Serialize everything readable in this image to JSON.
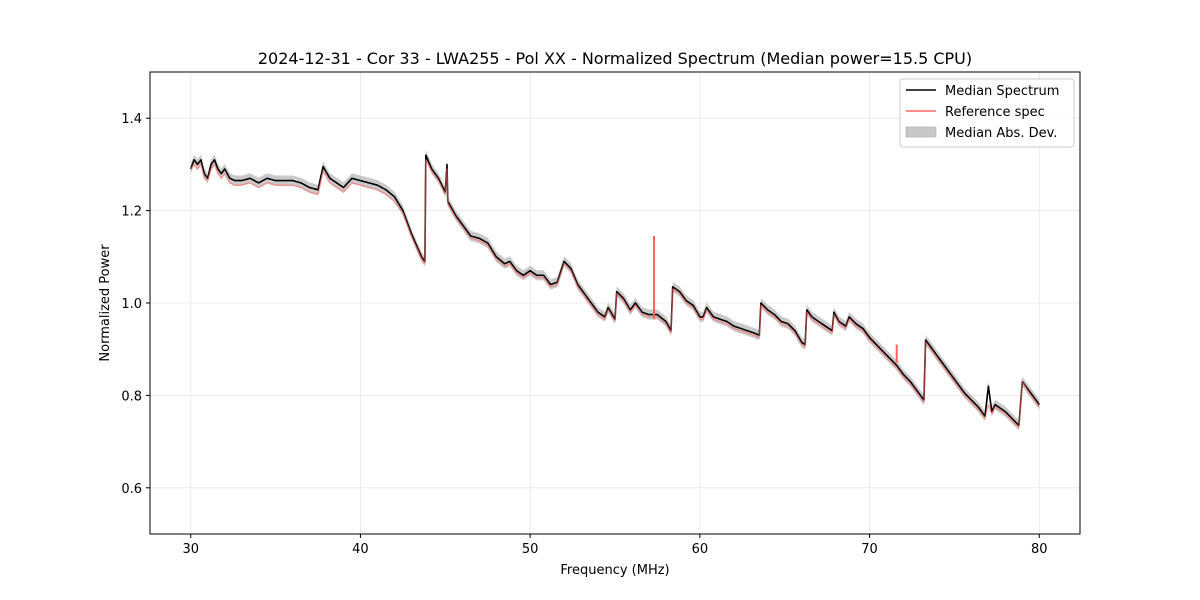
{
  "chart_data": {
    "type": "line",
    "title": "2024-12-31 - Cor 33 - LWA255 - Pol XX - Normalized Spectrum (Median power=15.5 CPU)",
    "xlabel": "Frequency (MHz)",
    "ylabel": "Normalized Power",
    "xlim": [
      27.6,
      82.4
    ],
    "ylim": [
      0.5,
      1.5
    ],
    "xticks": [
      30,
      40,
      50,
      60,
      70,
      80
    ],
    "yticks": [
      0.6,
      0.8,
      1.0,
      1.2,
      1.4
    ],
    "xtick_labels": [
      "30",
      "40",
      "50",
      "60",
      "70",
      "80"
    ],
    "ytick_labels": [
      "0.6",
      "0.8",
      "1.0",
      "1.2",
      "1.4"
    ],
    "grid": true,
    "legend_position": "top-right",
    "legend": [
      {
        "label": "Median Spectrum",
        "kind": "line",
        "color": "#000000"
      },
      {
        "label": "Reference spec",
        "kind": "line",
        "color": "#ff6060"
      },
      {
        "label": "Median Abs. Dev.",
        "kind": "band",
        "color": "#c8c8c8"
      }
    ],
    "mad_half_width": 0.011,
    "x": [
      30.0,
      30.2,
      30.4,
      30.6,
      30.8,
      31.0,
      31.2,
      31.4,
      31.6,
      31.8,
      32.0,
      32.3,
      32.6,
      33.0,
      33.5,
      34.0,
      34.5,
      35.0,
      35.5,
      36.0,
      36.5,
      37.0,
      37.5,
      37.8,
      38.2,
      38.6,
      39.0,
      39.5,
      40.0,
      40.5,
      41.0,
      41.5,
      42.0,
      42.5,
      43.0,
      43.6,
      43.8,
      43.85,
      44.2,
      44.6,
      45.0,
      45.1,
      45.15,
      45.6,
      46.0,
      46.5,
      47.0,
      47.5,
      48.0,
      48.5,
      48.8,
      49.2,
      49.6,
      50.0,
      50.4,
      50.8,
      51.2,
      51.6,
      52.0,
      52.4,
      52.8,
      53.2,
      53.6,
      54.0,
      54.4,
      54.6,
      55.0,
      55.1,
      55.5,
      55.9,
      56.2,
      56.6,
      57.0,
      57.5,
      58.0,
      58.3,
      58.4,
      58.8,
      59.2,
      59.6,
      60.0,
      60.2,
      60.4,
      60.8,
      61.2,
      61.6,
      62.0,
      62.4,
      62.8,
      63.2,
      63.5,
      63.6,
      64.0,
      64.4,
      64.8,
      65.2,
      65.6,
      66.0,
      66.2,
      66.3,
      66.6,
      67.0,
      67.4,
      67.8,
      67.9,
      68.2,
      68.6,
      68.8,
      69.2,
      69.6,
      70.0,
      70.4,
      70.8,
      71.2,
      71.6,
      72.0,
      72.4,
      72.8,
      73.2,
      73.3,
      73.6,
      74.0,
      74.4,
      74.8,
      75.2,
      75.6,
      76.0,
      76.4,
      76.8,
      77.0,
      77.2,
      77.4,
      77.6,
      78.0,
      78.4,
      78.8,
      79.0,
      79.4,
      79.8,
      80.0
    ],
    "series": [
      {
        "name": "Median Spectrum",
        "color": "#000000",
        "values": [
          1.29,
          1.31,
          1.3,
          1.31,
          1.28,
          1.27,
          1.3,
          1.31,
          1.29,
          1.28,
          1.29,
          1.27,
          1.265,
          1.265,
          1.27,
          1.26,
          1.27,
          1.265,
          1.265,
          1.265,
          1.26,
          1.25,
          1.245,
          1.295,
          1.27,
          1.26,
          1.25,
          1.27,
          1.265,
          1.26,
          1.255,
          1.245,
          1.23,
          1.2,
          1.15,
          1.1,
          1.09,
          1.32,
          1.29,
          1.27,
          1.24,
          1.3,
          1.22,
          1.19,
          1.17,
          1.145,
          1.14,
          1.13,
          1.1,
          1.085,
          1.09,
          1.07,
          1.06,
          1.07,
          1.06,
          1.06,
          1.04,
          1.045,
          1.09,
          1.075,
          1.04,
          1.02,
          1.0,
          0.98,
          0.97,
          0.99,
          0.965,
          1.025,
          1.01,
          0.985,
          1.0,
          0.98,
          0.975,
          0.975,
          0.96,
          0.94,
          1.035,
          1.025,
          1.005,
          0.995,
          0.97,
          0.97,
          0.99,
          0.97,
          0.965,
          0.96,
          0.95,
          0.945,
          0.94,
          0.935,
          0.93,
          1.0,
          0.985,
          0.975,
          0.96,
          0.955,
          0.94,
          0.915,
          0.91,
          0.985,
          0.97,
          0.96,
          0.95,
          0.94,
          0.98,
          0.96,
          0.95,
          0.97,
          0.955,
          0.945,
          0.925,
          0.91,
          0.895,
          0.88,
          0.865,
          0.845,
          0.83,
          0.81,
          0.79,
          0.92,
          0.905,
          0.885,
          0.865,
          0.845,
          0.825,
          0.805,
          0.79,
          0.775,
          0.755,
          0.82,
          0.765,
          0.78,
          0.775,
          0.765,
          0.75,
          0.735,
          0.83,
          0.81,
          0.79,
          0.78
        ]
      },
      {
        "name": "Reference spec",
        "color": "#ff6060",
        "values": [
          1.29,
          1.3,
          1.29,
          1.3,
          1.27,
          1.265,
          1.29,
          1.3,
          1.28,
          1.27,
          1.28,
          1.26,
          1.255,
          1.255,
          1.26,
          1.25,
          1.26,
          1.255,
          1.255,
          1.255,
          1.25,
          1.24,
          1.235,
          1.285,
          1.26,
          1.25,
          1.24,
          1.26,
          1.255,
          1.25,
          1.245,
          1.235,
          1.22,
          1.195,
          1.145,
          1.095,
          1.085,
          1.31,
          1.285,
          1.265,
          1.235,
          1.29,
          1.215,
          1.185,
          1.165,
          1.14,
          1.135,
          1.125,
          1.095,
          1.08,
          1.085,
          1.065,
          1.055,
          1.065,
          1.055,
          1.055,
          1.035,
          1.04,
          1.085,
          1.07,
          1.035,
          1.015,
          0.995,
          0.975,
          0.965,
          0.985,
          0.96,
          1.02,
          1.005,
          0.98,
          0.995,
          0.975,
          0.97,
          0.97,
          0.955,
          0.935,
          1.03,
          1.02,
          1.0,
          0.99,
          0.965,
          0.965,
          0.985,
          0.965,
          0.96,
          0.955,
          0.945,
          0.94,
          0.935,
          0.93,
          0.925,
          0.995,
          0.98,
          0.97,
          0.955,
          0.95,
          0.935,
          0.91,
          0.905,
          0.98,
          0.965,
          0.955,
          0.945,
          0.935,
          0.975,
          0.955,
          0.945,
          0.965,
          0.95,
          0.94,
          0.92,
          0.905,
          0.89,
          0.875,
          0.86,
          0.84,
          0.825,
          0.805,
          0.785,
          0.915,
          0.9,
          0.88,
          0.86,
          0.84,
          0.82,
          0.8,
          0.785,
          0.77,
          0.75,
          0.78,
          0.76,
          0.775,
          0.77,
          0.76,
          0.745,
          0.73,
          0.83,
          0.805,
          0.785,
          0.775
        ]
      }
    ],
    "spikes": [
      {
        "series": "Reference spec",
        "x": 57.3,
        "y_from": 0.965,
        "y_to": 1.145
      },
      {
        "series": "Reference spec",
        "x": 71.6,
        "y_from": 0.87,
        "y_to": 0.91
      }
    ]
  }
}
